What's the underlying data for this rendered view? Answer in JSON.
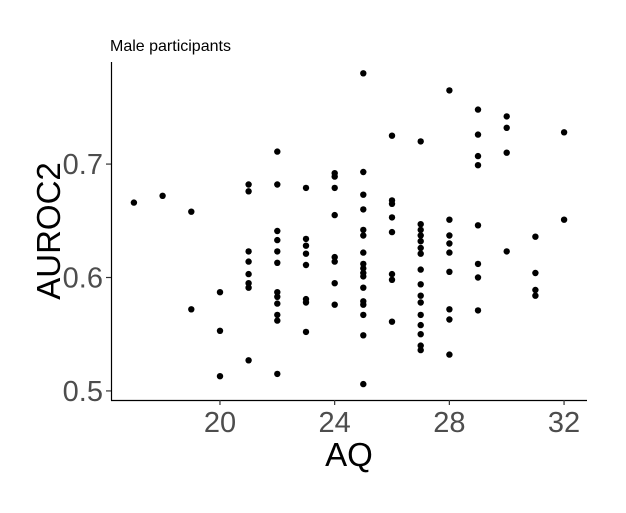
{
  "chart_data": {
    "type": "scatter",
    "title": "Male participants",
    "xlabel": "AQ",
    "ylabel": "AUROC2",
    "xlim": [
      16.2,
      32.8
    ],
    "ylim": [
      0.492,
      0.79
    ],
    "xticks": [
      "20",
      "24",
      "28",
      "32"
    ],
    "yticks": [
      "0.5",
      "0.6",
      "0.7"
    ],
    "grid": false,
    "legend": "none",
    "point_color": "#000000",
    "points": [
      [
        17,
        0.666
      ],
      [
        18,
        0.672
      ],
      [
        19,
        0.658
      ],
      [
        19,
        0.572
      ],
      [
        20,
        0.587
      ],
      [
        20,
        0.553
      ],
      [
        20,
        0.513
      ],
      [
        21,
        0.682
      ],
      [
        21,
        0.676
      ],
      [
        21,
        0.623
      ],
      [
        21,
        0.614
      ],
      [
        21,
        0.603
      ],
      [
        21,
        0.595
      ],
      [
        21,
        0.591
      ],
      [
        21,
        0.527
      ],
      [
        22,
        0.711
      ],
      [
        22,
        0.682
      ],
      [
        22,
        0.641
      ],
      [
        22,
        0.633
      ],
      [
        22,
        0.623
      ],
      [
        22,
        0.613
      ],
      [
        22,
        0.587
      ],
      [
        22,
        0.583
      ],
      [
        22,
        0.577
      ],
      [
        22,
        0.567
      ],
      [
        22,
        0.562
      ],
      [
        22,
        0.515
      ],
      [
        23,
        0.679
      ],
      [
        23,
        0.634
      ],
      [
        23,
        0.628
      ],
      [
        23,
        0.621
      ],
      [
        23,
        0.611
      ],
      [
        23,
        0.581
      ],
      [
        23,
        0.578
      ],
      [
        23,
        0.552
      ],
      [
        24,
        0.692
      ],
      [
        24,
        0.689
      ],
      [
        24,
        0.679
      ],
      [
        24,
        0.655
      ],
      [
        24,
        0.618
      ],
      [
        24,
        0.614
      ],
      [
        24,
        0.595
      ],
      [
        24,
        0.576
      ],
      [
        25,
        0.78
      ],
      [
        25,
        0.693
      ],
      [
        25,
        0.673
      ],
      [
        25,
        0.66
      ],
      [
        25,
        0.642
      ],
      [
        25,
        0.637
      ],
      [
        25,
        0.622
      ],
      [
        25,
        0.612
      ],
      [
        25,
        0.608
      ],
      [
        25,
        0.604
      ],
      [
        25,
        0.601
      ],
      [
        25,
        0.591
      ],
      [
        25,
        0.579
      ],
      [
        25,
        0.576
      ],
      [
        25,
        0.567
      ],
      [
        25,
        0.549
      ],
      [
        25,
        0.506
      ],
      [
        26,
        0.725
      ],
      [
        26,
        0.668
      ],
      [
        26,
        0.665
      ],
      [
        26,
        0.653
      ],
      [
        26,
        0.64
      ],
      [
        26,
        0.603
      ],
      [
        26,
        0.598
      ],
      [
        26,
        0.561
      ],
      [
        27,
        0.72
      ],
      [
        27,
        0.647
      ],
      [
        27,
        0.642
      ],
      [
        27,
        0.637
      ],
      [
        27,
        0.632
      ],
      [
        27,
        0.626
      ],
      [
        27,
        0.621
      ],
      [
        27,
        0.607
      ],
      [
        27,
        0.594
      ],
      [
        27,
        0.584
      ],
      [
        27,
        0.578
      ],
      [
        27,
        0.567
      ],
      [
        27,
        0.558
      ],
      [
        27,
        0.55
      ],
      [
        27,
        0.54
      ],
      [
        27,
        0.536
      ],
      [
        28,
        0.765
      ],
      [
        28,
        0.651
      ],
      [
        28,
        0.637
      ],
      [
        28,
        0.63
      ],
      [
        28,
        0.622
      ],
      [
        28,
        0.605
      ],
      [
        28,
        0.572
      ],
      [
        28,
        0.563
      ],
      [
        28,
        0.532
      ],
      [
        29,
        0.748
      ],
      [
        29,
        0.726
      ],
      [
        29,
        0.707
      ],
      [
        29,
        0.699
      ],
      [
        29,
        0.646
      ],
      [
        29,
        0.612
      ],
      [
        29,
        0.6
      ],
      [
        29,
        0.571
      ],
      [
        30,
        0.742
      ],
      [
        30,
        0.732
      ],
      [
        30,
        0.71
      ],
      [
        30,
        0.623
      ],
      [
        31,
        0.636
      ],
      [
        31,
        0.604
      ],
      [
        31,
        0.589
      ],
      [
        31,
        0.584
      ],
      [
        32,
        0.728
      ],
      [
        32,
        0.651
      ]
    ]
  }
}
